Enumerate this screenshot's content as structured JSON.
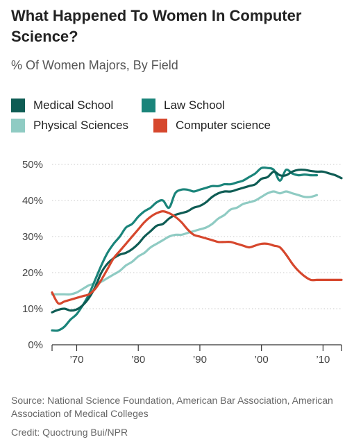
{
  "chart_data": {
    "type": "line",
    "title": "What Happened To Women In Computer Science?",
    "subtitle": "% Of Women Majors, By Field",
    "xlabel": "",
    "ylabel": "",
    "xlim": [
      1966,
      2013
    ],
    "ylim": [
      0,
      50
    ],
    "xticks": [
      1970,
      1980,
      1990,
      2000,
      2010
    ],
    "xtick_labels": [
      "’70",
      "’80",
      "’90",
      "’00",
      "’10"
    ],
    "yticks": [
      0,
      10,
      20,
      30,
      40,
      50
    ],
    "ytick_labels": [
      "0%",
      "10%",
      "20%",
      "30%",
      "40%",
      "50%"
    ],
    "grid": "horizontal dotted",
    "legend_position": "top",
    "series": [
      {
        "name": "Medical School",
        "color": "#0e5c54",
        "x": [
          1966,
          1967,
          1968,
          1969,
          1970,
          1971,
          1972,
          1973,
          1974,
          1975,
          1976,
          1977,
          1978,
          1979,
          1980,
          1981,
          1982,
          1983,
          1984,
          1985,
          1986,
          1987,
          1988,
          1989,
          1990,
          1991,
          1992,
          1993,
          1994,
          1995,
          1996,
          1997,
          1998,
          1999,
          2000,
          2001,
          2002,
          2003,
          2004,
          2005,
          2006,
          2007,
          2008,
          2009,
          2010,
          2011,
          2012,
          2013
        ],
        "values": [
          9,
          9.7,
          10,
          9.5,
          9.8,
          11,
          13,
          16,
          20,
          22.5,
          24,
          25,
          25.5,
          26.5,
          28,
          30,
          31.5,
          33,
          33.5,
          35,
          36,
          36.5,
          37,
          38,
          38.5,
          39.5,
          41,
          42,
          42.5,
          42.5,
          43,
          43.5,
          44,
          44.5,
          46,
          46.5,
          48,
          47,
          47,
          48,
          48.5,
          48.5,
          48.2,
          48,
          48,
          47.5,
          47,
          46.2
        ]
      },
      {
        "name": "Law School",
        "color": "#1a847a",
        "x": [
          1966,
          1967,
          1968,
          1969,
          1970,
          1971,
          1972,
          1973,
          1974,
          1975,
          1976,
          1977,
          1978,
          1979,
          1980,
          1981,
          1982,
          1983,
          1984,
          1985,
          1986,
          1987,
          1988,
          1989,
          1990,
          1991,
          1992,
          1993,
          1994,
          1995,
          1996,
          1997,
          1998,
          1999,
          2000,
          2001,
          2002,
          2003,
          2004,
          2005,
          2006,
          2007,
          2008,
          2009
        ],
        "values": [
          4,
          4,
          5,
          7,
          8.5,
          11,
          14,
          18,
          22,
          25.5,
          28,
          30,
          32.5,
          33.5,
          35.5,
          37,
          38,
          39.5,
          40,
          38,
          42,
          43,
          43,
          42.5,
          43,
          43.5,
          44,
          44,
          44.5,
          44.5,
          45,
          45.5,
          46.5,
          47.5,
          49,
          49,
          48.5,
          45.5,
          48.5,
          47.5,
          47,
          47.2,
          47,
          47
        ]
      },
      {
        "name": "Physical Sciences",
        "color": "#8fcbc3",
        "x": [
          1966,
          1967,
          1968,
          1969,
          1970,
          1971,
          1972,
          1973,
          1974,
          1975,
          1976,
          1977,
          1978,
          1979,
          1980,
          1981,
          1982,
          1983,
          1984,
          1985,
          1986,
          1987,
          1988,
          1989,
          1990,
          1991,
          1992,
          1993,
          1994,
          1995,
          1996,
          1997,
          1998,
          1999,
          2000,
          2001,
          2002,
          2003,
          2004,
          2005,
          2006,
          2007,
          2008,
          2009
        ],
        "values": [
          14,
          14,
          14,
          14,
          14.5,
          15.5,
          16.5,
          17,
          17.5,
          18.5,
          19.5,
          20.5,
          22,
          23,
          24.5,
          25.5,
          27,
          28,
          29,
          30,
          30.5,
          30.5,
          31,
          31.5,
          32,
          32.5,
          33.5,
          35,
          36,
          37.5,
          38,
          39,
          39.5,
          40,
          41,
          42,
          42.5,
          42,
          42.5,
          42,
          41.5,
          41,
          41,
          41.5
        ]
      },
      {
        "name": "Computer science",
        "color": "#d6472d",
        "x": [
          1966,
          1967,
          1968,
          1969,
          1970,
          1971,
          1972,
          1973,
          1974,
          1975,
          1976,
          1977,
          1978,
          1979,
          1980,
          1981,
          1982,
          1983,
          1984,
          1985,
          1986,
          1987,
          1988,
          1989,
          1990,
          1991,
          1992,
          1993,
          1994,
          1995,
          1996,
          1997,
          1998,
          1999,
          2000,
          2001,
          2002,
          2003,
          2004,
          2005,
          2006,
          2007,
          2008,
          2009,
          2010,
          2011,
          2012,
          2013
        ],
        "values": [
          14.5,
          11.5,
          12,
          12.5,
          13,
          13.5,
          14,
          15.5,
          18,
          21,
          24,
          26,
          28,
          30,
          32,
          34,
          35.5,
          36.5,
          37,
          36.5,
          35.5,
          34,
          32,
          30.5,
          30,
          29.5,
          29,
          28.5,
          28.5,
          28.5,
          28,
          27.5,
          27,
          27.5,
          28,
          28,
          27.5,
          27,
          25,
          22.5,
          20.5,
          19,
          18,
          18,
          18,
          18,
          18,
          18
        ]
      }
    ]
  },
  "footer": {
    "source": "Source: National Science Foundation, American Bar Association, American Association of Medical Colleges",
    "credit": "Credit: Quoctrung Bui/NPR"
  }
}
